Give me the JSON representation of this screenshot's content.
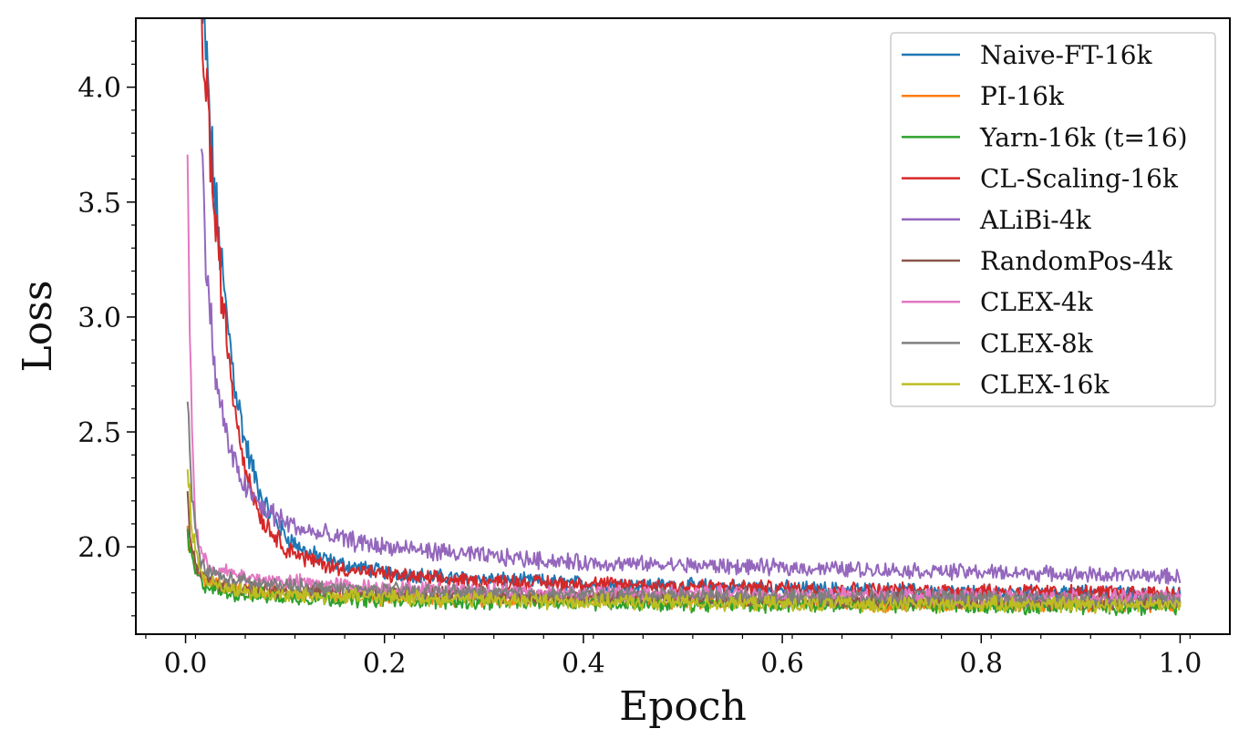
{
  "chart_data": {
    "type": "line",
    "title": "",
    "xlabel": "Epoch",
    "ylabel": "Loss",
    "xlim": [
      -0.05,
      1.05
    ],
    "ylim": [
      1.62,
      4.3
    ],
    "x_major_ticks": [
      0.0,
      0.2,
      0.4,
      0.6,
      0.8,
      1.0
    ],
    "x_tick_labels": [
      "0.0",
      "0.2",
      "0.4",
      "0.6",
      "0.8",
      "1.0"
    ],
    "y_major_ticks": [
      2.0,
      2.5,
      3.0,
      3.5,
      4.0
    ],
    "y_tick_labels": [
      "2.0",
      "2.5",
      "3.0",
      "3.5",
      "4.0"
    ],
    "grid": false,
    "legend_position": "top-right",
    "series": [
      {
        "name": "Naive-FT-16k",
        "color": "#1f77b4",
        "x": [
          0.017,
          0.02,
          0.025,
          0.03,
          0.04,
          0.05,
          0.06,
          0.07,
          0.08,
          0.1,
          0.12,
          0.15,
          0.2,
          0.25,
          0.3,
          0.4,
          0.5,
          0.6,
          0.7,
          0.8,
          0.9,
          1.0
        ],
        "y": [
          4.25,
          4.2,
          3.8,
          3.5,
          3.05,
          2.7,
          2.45,
          2.3,
          2.18,
          2.05,
          1.98,
          1.93,
          1.89,
          1.87,
          1.86,
          1.84,
          1.83,
          1.82,
          1.81,
          1.8,
          1.8,
          1.79
        ]
      },
      {
        "name": "PI-16k",
        "color": "#ff7f0e",
        "x": [
          0.002,
          0.005,
          0.01,
          0.02,
          0.04,
          0.07,
          0.1,
          0.2,
          0.3,
          0.4,
          0.5,
          0.6,
          0.7,
          0.8,
          0.9,
          1.0
        ],
        "y": [
          2.05,
          2.0,
          1.9,
          1.85,
          1.82,
          1.81,
          1.8,
          1.78,
          1.77,
          1.77,
          1.76,
          1.76,
          1.75,
          1.75,
          1.75,
          1.75
        ]
      },
      {
        "name": "Yarn-16k (t=16)",
        "color": "#2ca02c",
        "x": [
          0.002,
          0.005,
          0.01,
          0.02,
          0.04,
          0.07,
          0.1,
          0.2,
          0.3,
          0.4,
          0.5,
          0.6,
          0.7,
          0.8,
          0.9,
          1.0
        ],
        "y": [
          2.04,
          1.98,
          1.88,
          1.83,
          1.8,
          1.79,
          1.78,
          1.77,
          1.76,
          1.76,
          1.75,
          1.75,
          1.75,
          1.74,
          1.74,
          1.74
        ]
      },
      {
        "name": "CL-Scaling-16k",
        "color": "#d62728",
        "x": [
          0.015,
          0.02,
          0.025,
          0.03,
          0.04,
          0.05,
          0.06,
          0.07,
          0.08,
          0.1,
          0.12,
          0.15,
          0.2,
          0.25,
          0.3,
          0.4,
          0.5,
          0.6,
          0.7,
          0.8,
          0.9,
          1.0
        ],
        "y": [
          4.25,
          4.1,
          3.7,
          3.4,
          2.95,
          2.6,
          2.35,
          2.2,
          2.1,
          2.0,
          1.95,
          1.91,
          1.88,
          1.86,
          1.85,
          1.84,
          1.83,
          1.82,
          1.81,
          1.81,
          1.8,
          1.8
        ]
      },
      {
        "name": "ALiBi-4k",
        "color": "#9467bd",
        "x": [
          0.016,
          0.02,
          0.025,
          0.03,
          0.04,
          0.05,
          0.06,
          0.07,
          0.08,
          0.1,
          0.12,
          0.15,
          0.2,
          0.25,
          0.3,
          0.4,
          0.5,
          0.6,
          0.7,
          0.8,
          0.9,
          1.0
        ],
        "y": [
          3.72,
          3.3,
          3.0,
          2.75,
          2.5,
          2.35,
          2.26,
          2.2,
          2.16,
          2.11,
          2.07,
          2.04,
          2.0,
          1.98,
          1.96,
          1.93,
          1.92,
          1.91,
          1.9,
          1.89,
          1.88,
          1.87
        ]
      },
      {
        "name": "RandomPos-4k",
        "color": "#8c564b",
        "x": [
          0.002,
          0.005,
          0.01,
          0.02,
          0.04,
          0.07,
          0.1,
          0.2,
          0.3,
          0.4,
          0.5,
          0.6,
          0.7,
          0.8,
          0.9,
          1.0
        ],
        "y": [
          2.2,
          2.05,
          1.92,
          1.86,
          1.83,
          1.82,
          1.81,
          1.8,
          1.79,
          1.78,
          1.78,
          1.77,
          1.77,
          1.76,
          1.76,
          1.76
        ]
      },
      {
        "name": "CLEX-4k",
        "color": "#e377c2",
        "x": [
          0.002,
          0.004,
          0.006,
          0.008,
          0.01,
          0.015,
          0.02,
          0.03,
          0.05,
          0.07,
          0.1,
          0.2,
          0.3,
          0.4,
          0.5,
          0.6,
          0.7,
          0.8,
          0.9,
          1.0
        ],
        "y": [
          3.76,
          3.0,
          2.6,
          2.3,
          2.1,
          1.98,
          1.93,
          1.9,
          1.88,
          1.86,
          1.85,
          1.82,
          1.81,
          1.8,
          1.8,
          1.79,
          1.79,
          1.78,
          1.78,
          1.78
        ]
      },
      {
        "name": "CLEX-8k",
        "color": "#7f7f7f",
        "x": [
          0.002,
          0.004,
          0.006,
          0.01,
          0.015,
          0.02,
          0.04,
          0.07,
          0.1,
          0.2,
          0.3,
          0.4,
          0.5,
          0.6,
          0.7,
          0.8,
          0.9,
          1.0
        ],
        "y": [
          2.6,
          2.45,
          2.25,
          2.05,
          1.95,
          1.9,
          1.86,
          1.84,
          1.83,
          1.81,
          1.8,
          1.79,
          1.79,
          1.78,
          1.78,
          1.78,
          1.77,
          1.77
        ]
      },
      {
        "name": "CLEX-16k",
        "color": "#bcbd22",
        "x": [
          0.002,
          0.004,
          0.006,
          0.01,
          0.015,
          0.02,
          0.04,
          0.07,
          0.1,
          0.2,
          0.3,
          0.4,
          0.5,
          0.6,
          0.7,
          0.8,
          0.9,
          1.0
        ],
        "y": [
          2.35,
          2.25,
          2.1,
          1.98,
          1.9,
          1.85,
          1.82,
          1.8,
          1.79,
          1.78,
          1.77,
          1.76,
          1.76,
          1.75,
          1.75,
          1.75,
          1.75,
          1.75
        ]
      }
    ]
  }
}
